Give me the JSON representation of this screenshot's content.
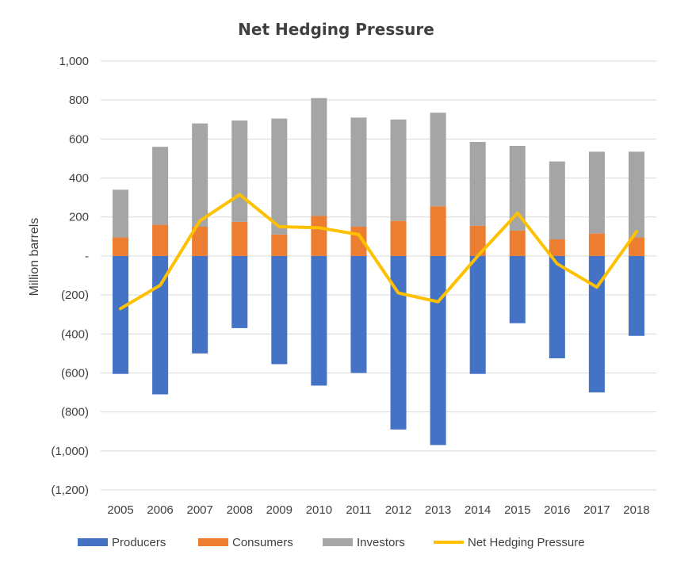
{
  "chart_data": {
    "type": "bar",
    "title": "Net Hedging Pressure",
    "ylabel": "Million barrels",
    "xlabel": "",
    "categories": [
      "2005",
      "2006",
      "2007",
      "2008",
      "2009",
      "2010",
      "2011",
      "2012",
      "2013",
      "2014",
      "2015",
      "2016",
      "2017",
      "2018"
    ],
    "ylim": [
      -1200,
      1000
    ],
    "yticks": [
      1000,
      800,
      600,
      400,
      200,
      0,
      -200,
      -400,
      -600,
      -800,
      -1000,
      -1200
    ],
    "ytick_labels": [
      "1,000",
      "800",
      "600",
      "400",
      "200",
      "-",
      "(200)",
      "(400)",
      "(600)",
      "(800)",
      "(1,000)",
      "(1,200)"
    ],
    "grid": true,
    "legend_position": "bottom",
    "series": [
      {
        "name": "Producers",
        "kind": "bar",
        "stack": "neg",
        "color": "#4472c4",
        "values": [
          -605,
          -710,
          -500,
          -370,
          -555,
          -665,
          -600,
          -890,
          -970,
          -605,
          -345,
          -525,
          -700,
          -410
        ]
      },
      {
        "name": "Consumers",
        "kind": "bar",
        "stack": "pos",
        "color": "#ed7d31",
        "values": [
          95,
          160,
          150,
          175,
          110,
          205,
          150,
          180,
          255,
          155,
          130,
          85,
          115,
          95
        ]
      },
      {
        "name": "Investors",
        "kind": "bar",
        "stack": "pos",
        "color": "#a5a5a5",
        "values": [
          245,
          400,
          530,
          520,
          595,
          605,
          560,
          520,
          480,
          430,
          435,
          400,
          420,
          440
        ]
      },
      {
        "name": "Net Hedging Pressure",
        "kind": "line",
        "color": "#ffc000",
        "values": [
          -270,
          -150,
          180,
          315,
          150,
          145,
          110,
          -190,
          -235,
          0,
          220,
          -40,
          -160,
          125
        ]
      }
    ]
  }
}
